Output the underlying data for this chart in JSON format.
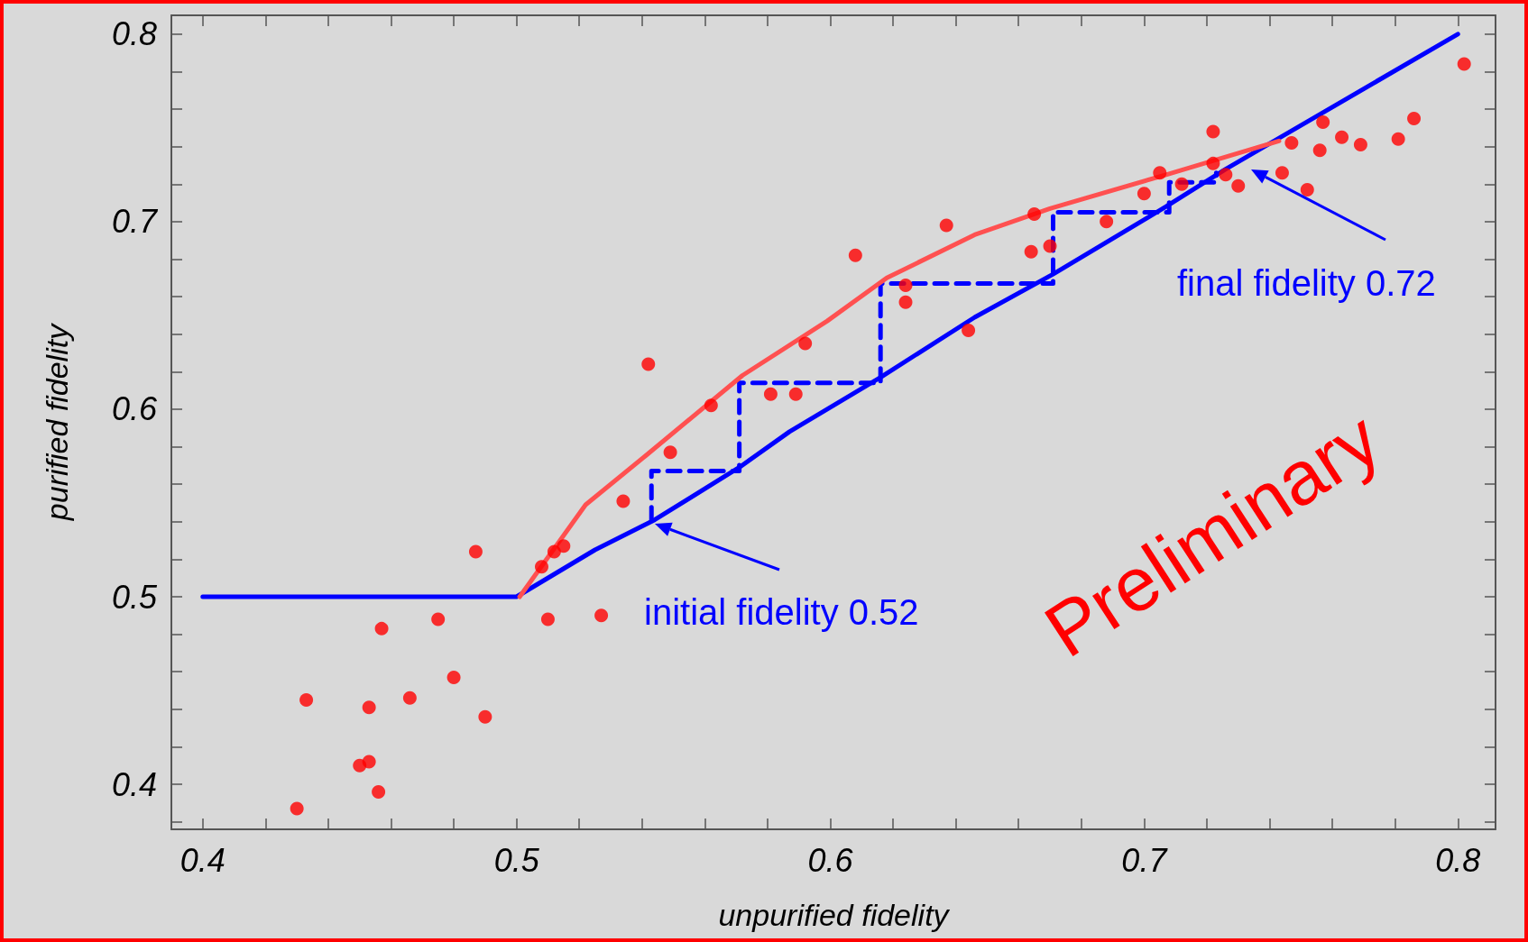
{
  "chart_data": {
    "type": "scatter",
    "xlabel": "unpurified fidelity",
    "ylabel": "purified fidelity",
    "xlim": [
      0.39,
      0.812
    ],
    "ylim": [
      0.376,
      0.81
    ],
    "xticks": [
      0.4,
      {
        "value": 0.42,
        "label": null
      },
      {
        "value": 0.44,
        "label": null
      },
      {
        "value": 0.46,
        "label": null
      },
      {
        "value": 0.48,
        "label": null
      },
      0.5,
      {
        "value": 0.52,
        "label": null
      },
      {
        "value": 0.54,
        "label": null
      },
      {
        "value": 0.56,
        "label": null
      },
      {
        "value": 0.58,
        "label": null
      },
      0.6,
      {
        "value": 0.62,
        "label": null
      },
      {
        "value": 0.64,
        "label": null
      },
      {
        "value": 0.66,
        "label": null
      },
      {
        "value": 0.68,
        "label": null
      },
      0.7,
      {
        "value": 0.72,
        "label": null
      },
      {
        "value": 0.74,
        "label": null
      },
      {
        "value": 0.76,
        "label": null
      },
      {
        "value": 0.78,
        "label": null
      },
      0.8
    ],
    "yticks": [
      {
        "value": 0.38,
        "label": null
      },
      0.4,
      {
        "value": 0.42,
        "label": null
      },
      {
        "value": 0.44,
        "label": null
      },
      {
        "value": 0.46,
        "label": null
      },
      {
        "value": 0.48,
        "label": null
      },
      0.5,
      {
        "value": 0.52,
        "label": null
      },
      {
        "value": 0.54,
        "label": null
      },
      {
        "value": 0.56,
        "label": null
      },
      {
        "value": 0.58,
        "label": null
      },
      0.6,
      {
        "value": 0.62,
        "label": null
      },
      {
        "value": 0.64,
        "label": null
      },
      {
        "value": 0.66,
        "label": null
      },
      {
        "value": 0.68,
        "label": null
      },
      0.7,
      {
        "value": 0.72,
        "label": null
      },
      {
        "value": 0.74,
        "label": null
      },
      {
        "value": 0.76,
        "label": null
      },
      {
        "value": 0.78,
        "label": null
      },
      0.8
    ],
    "grid": false,
    "series": [
      {
        "type": "line",
        "color": "#0000ff",
        "marker": "none",
        "line_style": "solid",
        "x": [
          0.4,
          0.5,
          0.525,
          0.544,
          0.571,
          0.587,
          0.616,
          0.646,
          0.671,
          0.707,
          0.726,
          0.8
        ],
        "values": [
          0.5,
          0.5,
          0.525,
          0.541,
          0.569,
          0.588,
          0.617,
          0.649,
          0.672,
          0.708,
          0.728,
          0.8
        ]
      },
      {
        "type": "line",
        "color": "#0000ff",
        "marker": "none",
        "line_style": "dashed",
        "x": [
          0.543,
          0.543,
          0.571,
          0.571,
          0.616,
          0.616,
          0.671,
          0.671,
          0.708,
          0.708,
          0.723,
          0.723
        ],
        "values": [
          0.541,
          0.567,
          0.567,
          0.614,
          0.614,
          0.667,
          0.667,
          0.705,
          0.705,
          0.721,
          0.721,
          0.726
        ]
      },
      {
        "type": "line",
        "color": "#ff5050",
        "marker": "none",
        "line_style": "solid",
        "x": [
          0.501,
          0.522,
          0.541,
          0.572,
          0.599,
          0.618,
          0.646,
          0.67,
          0.707,
          0.743
        ],
        "values": [
          0.5,
          0.549,
          0.575,
          0.618,
          0.647,
          0.67,
          0.693,
          0.707,
          0.725,
          0.743
        ]
      },
      {
        "color": "#ff0000",
        "marker": "circle",
        "x": [
          0.43,
          0.433,
          0.45,
          0.453,
          0.453,
          0.456,
          0.457,
          0.466,
          0.475,
          0.48,
          0.487,
          0.49,
          0.508,
          0.51,
          0.512,
          0.515,
          0.527,
          0.534,
          0.542,
          0.549,
          0.562,
          0.581,
          0.589,
          0.592,
          0.608,
          0.624,
          0.624,
          0.637,
          0.644,
          0.664,
          0.665,
          0.67,
          0.688,
          0.7,
          0.705,
          0.712,
          0.722,
          0.722,
          0.726,
          0.73,
          0.744,
          0.747,
          0.752,
          0.756,
          0.757,
          0.763,
          0.769,
          0.781,
          0.786,
          0.802
        ],
        "values": [
          0.387,
          0.445,
          0.41,
          0.412,
          0.441,
          0.396,
          0.483,
          0.446,
          0.488,
          0.457,
          0.524,
          0.436,
          0.516,
          0.488,
          0.524,
          0.527,
          0.49,
          0.551,
          0.624,
          0.577,
          0.602,
          0.608,
          0.608,
          0.635,
          0.682,
          0.666,
          0.657,
          0.698,
          0.642,
          0.684,
          0.704,
          0.687,
          0.7,
          0.715,
          0.726,
          0.72,
          0.731,
          0.748,
          0.725,
          0.719,
          0.726,
          0.742,
          0.717,
          0.738,
          0.753,
          0.745,
          0.741,
          0.744,
          0.755,
          0.784
        ]
      }
    ],
    "annotations": [
      "initial fidelity 0.52",
      "final fidelity 0.72",
      "Preliminary"
    ]
  }
}
